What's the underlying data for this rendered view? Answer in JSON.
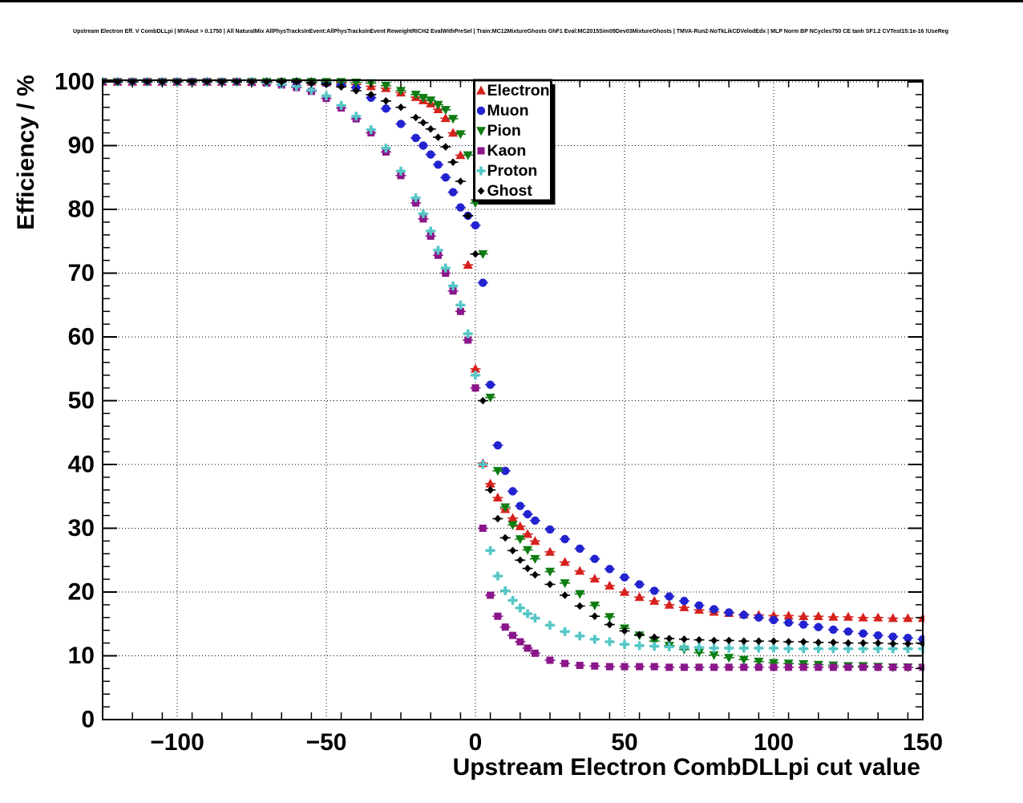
{
  "chart_data": {
    "type": "scatter",
    "title": "Upstream Electron Eff. V CombDLLpi | MVAout > 0.1750 | All NaturalMix AllPhysTracksInEvent:AllPhysTracksInEvent ReweightRICH2 EvalWithPreSel | Train:MC12MixtureGhosts GhF1 Eval:MC2015Sim09Dev03MixtureGhosts | TMVA-Run2-NoTkLikCDVelodEdx | MLP Norm BP NCycles750 CE tanh SF1.2 CVTest15:1e-16 !UseReg",
    "xlabel": "Upstream Electron CombDLLpi cut value",
    "ylabel": "Efficiency / %",
    "xlim": [
      -125,
      150
    ],
    "ylim": [
      0,
      100.25
    ],
    "x_major_ticks": [
      -100,
      -50,
      0,
      50,
      100,
      150
    ],
    "x_tick_labels": [
      "−100",
      "−50",
      "0",
      "50",
      "100",
      "150"
    ],
    "y_major_ticks": [
      0,
      10,
      20,
      30,
      40,
      50,
      60,
      70,
      80,
      90,
      100
    ],
    "x_minor_step": 10,
    "y_minor_step": 2,
    "grid": "dotted-on-majors",
    "legend_position": "top-right-inside",
    "frame_color": "#000000",
    "background_color": "#ffffff",
    "x": [
      -125,
      -120,
      -115,
      -110,
      -105,
      -100,
      -95,
      -90,
      -85,
      -80,
      -75,
      -70,
      -65,
      -60,
      -55,
      -50,
      -45,
      -40,
      -35,
      -30,
      -25,
      -20,
      -17.5,
      -15,
      -12.5,
      -10,
      -7.5,
      -5,
      -2.5,
      0,
      2.5,
      5,
      7.5,
      10,
      12.5,
      15,
      17.5,
      20,
      25,
      30,
      35,
      40,
      45,
      50,
      55,
      60,
      65,
      70,
      75,
      80,
      85,
      90,
      95,
      100,
      105,
      110,
      115,
      120,
      125,
      130,
      135,
      140,
      145,
      150
    ],
    "series": [
      {
        "name": "Electron",
        "marker": "triangle-up",
        "color": "#d6201c",
        "y": [
          100,
          100,
          100,
          100,
          100,
          100,
          100,
          100,
          100,
          100,
          100,
          100,
          100,
          100,
          100,
          99.9,
          99.8,
          99.6,
          99.3,
          99.0,
          98.3,
          97.6,
          97.1,
          96.6,
          95.7,
          94.3,
          92.0,
          88.5,
          71.3,
          55.0,
          40.2,
          37.0,
          34.8,
          33.0,
          31.6,
          30.3,
          29.1,
          28.0,
          26.3,
          24.7,
          23.3,
          22.1,
          21.0,
          20.0,
          19.2,
          18.6,
          18.0,
          17.6,
          17.2,
          16.9,
          16.7,
          16.5,
          16.4,
          16.3,
          16.3,
          16.2,
          16.2,
          16.1,
          16.1,
          16.0,
          16.0,
          15.9,
          15.9,
          15.9
        ]
      },
      {
        "name": "Muon",
        "marker": "circle",
        "color": "#2222d0",
        "y": [
          100,
          100,
          100,
          100,
          100,
          100,
          100,
          100,
          100,
          100,
          100,
          100,
          100,
          100,
          100,
          99.8,
          99.5,
          99.1,
          97.5,
          95.8,
          93.4,
          91.2,
          90.0,
          88.6,
          87.0,
          85.0,
          82.7,
          80.3,
          79.0,
          77.5,
          68.5,
          52.5,
          43.0,
          39.0,
          35.8,
          33.5,
          32.2,
          31.2,
          29.8,
          28.3,
          26.8,
          25.2,
          23.6,
          22.3,
          21.2,
          20.2,
          19.3,
          18.6,
          17.9,
          17.3,
          16.8,
          16.4,
          16.0,
          15.6,
          15.2,
          14.9,
          14.5,
          14.1,
          13.8,
          13.5,
          13.2,
          13.0,
          12.8,
          12.6
        ]
      },
      {
        "name": "Pion",
        "marker": "triangle-down",
        "color": "#0e7d12",
        "y": [
          100,
          100,
          100,
          100,
          100,
          100,
          100,
          100,
          100,
          100,
          100,
          100,
          100,
          100,
          100,
          100,
          100,
          99.9,
          99.8,
          99.4,
          98.6,
          98.0,
          97.5,
          97.1,
          96.4,
          95.6,
          94.2,
          91.8,
          88.5,
          81.0,
          73.0,
          50.5,
          39.0,
          33.3,
          30.5,
          28.3,
          26.6,
          25.2,
          23.2,
          21.4,
          19.7,
          17.9,
          16.1,
          14.3,
          13.2,
          12.3,
          11.6,
          11.0,
          10.5,
          10.1,
          9.7,
          9.4,
          9.1,
          8.9,
          8.8,
          8.7,
          8.6,
          8.5,
          8.4,
          8.4,
          8.3,
          8.2,
          8.2,
          8.1
        ]
      },
      {
        "name": "Kaon",
        "marker": "square",
        "color": "#8a168a",
        "y": [
          100,
          100,
          100,
          100,
          100,
          100,
          100,
          100,
          100,
          100,
          99.9,
          99.8,
          99.5,
          99.1,
          98.5,
          97.4,
          95.9,
          94.2,
          92.0,
          89.0,
          85.3,
          81.0,
          78.5,
          75.8,
          72.8,
          70.0,
          67.2,
          64.0,
          59.5,
          52.0,
          30.0,
          19.5,
          16.2,
          14.5,
          13.2,
          12.2,
          11.2,
          10.4,
          9.3,
          8.8,
          8.5,
          8.4,
          8.3,
          8.3,
          8.3,
          8.3,
          8.2,
          8.2,
          8.2,
          8.2,
          8.2,
          8.2,
          8.2,
          8.2,
          8.2,
          8.2,
          8.2,
          8.2,
          8.2,
          8.2,
          8.2,
          8.2,
          8.2,
          8.2
        ]
      },
      {
        "name": "Proton",
        "marker": "plus",
        "color": "#56c6c6",
        "y": [
          100,
          100,
          100,
          100,
          100,
          100,
          100,
          100,
          100,
          100,
          100,
          99.9,
          99.6,
          99.3,
          98.7,
          97.8,
          96.3,
          94.6,
          92.5,
          89.6,
          86.0,
          81.8,
          79.3,
          76.6,
          73.6,
          70.8,
          68.0,
          65.0,
          60.5,
          54.0,
          40.0,
          26.5,
          22.5,
          20.2,
          18.7,
          17.5,
          16.6,
          15.9,
          14.8,
          13.8,
          13.1,
          12.6,
          12.2,
          11.8,
          11.6,
          11.5,
          11.4,
          11.3,
          11.3,
          11.2,
          11.2,
          11.2,
          11.2,
          11.2,
          11.1,
          11.1,
          11.1,
          11.1,
          11.1,
          11.1,
          11.1,
          11.1,
          11.1,
          11.1
        ]
      },
      {
        "name": "Ghost",
        "marker": "diamond",
        "color": "#000000",
        "y": [
          100,
          100,
          100,
          100,
          100,
          100,
          100,
          100,
          100,
          100,
          100,
          100,
          100,
          100,
          99.8,
          99.6,
          99.2,
          98.6,
          98.0,
          97.0,
          96.0,
          94.4,
          93.6,
          92.6,
          91.3,
          89.8,
          87.4,
          84.4,
          79.0,
          73.0,
          50.0,
          36.0,
          31.5,
          28.5,
          26.5,
          25.0,
          23.7,
          22.7,
          21.2,
          19.5,
          17.8,
          16.2,
          14.9,
          13.9,
          13.3,
          12.9,
          12.7,
          12.6,
          12.5,
          12.4,
          12.4,
          12.3,
          12.3,
          12.3,
          12.2,
          12.2,
          12.1,
          12.1,
          12.0,
          12.0,
          12.0,
          11.9,
          11.9,
          11.9
        ]
      }
    ]
  }
}
